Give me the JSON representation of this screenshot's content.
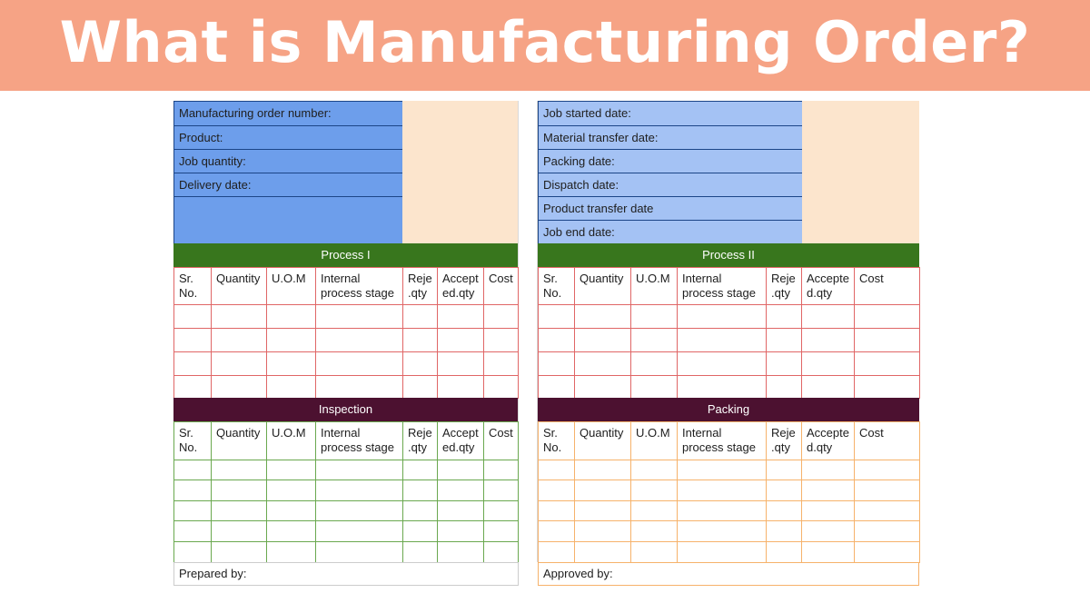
{
  "title": "What is Manufacturing Order?",
  "left_info_fields": [
    "Manufacturing order number:",
    "Product:",
    "Job quantity:",
    "Delivery date:",
    ""
  ],
  "right_info_fields": [
    "Job started date:",
    "Material transfer date:",
    "Packing date:",
    "Dispatch date:",
    "Product transfer date",
    "Job end date:"
  ],
  "sections": {
    "process_1": {
      "title": "Process I",
      "columns": [
        [
          "Sr.",
          "No."
        ],
        [
          "Quantity"
        ],
        [
          "U.O.M"
        ],
        [
          "Internal",
          "process stage"
        ],
        [
          "Reje",
          ".qty"
        ],
        [
          "Accept",
          "ed.qty"
        ],
        [
          "Cost"
        ]
      ]
    },
    "process_2": {
      "title": "Process II",
      "columns": [
        [
          "Sr.",
          "No."
        ],
        [
          "Quantity"
        ],
        [
          "U.O.M"
        ],
        [
          "Internal",
          "process stage"
        ],
        [
          "Reje",
          ".qty"
        ],
        [
          "Accepte",
          "d.qty"
        ],
        [
          "Cost"
        ]
      ]
    },
    "inspection": {
      "title": "Inspection",
      "columns": [
        [
          "Sr.",
          "No."
        ],
        [
          "Quantity"
        ],
        [
          "U.O.M"
        ],
        [
          "Internal",
          "process stage"
        ],
        [
          "Reje",
          ".qty"
        ],
        [
          "Accept",
          "ed.qty"
        ],
        [
          "Cost"
        ]
      ]
    },
    "packing": {
      "title": "Packing",
      "columns": [
        [
          "Sr.",
          "No."
        ],
        [
          "Quantity"
        ],
        [
          "U.O.M"
        ],
        [
          "Internal",
          "process stage"
        ],
        [
          "Reje",
          ".qty"
        ],
        [
          "Accepte",
          "d.qty"
        ],
        [
          "Cost"
        ]
      ]
    }
  },
  "footer": {
    "prepared_by_label": "Prepared by:",
    "approved_by_label": "Approved by:"
  },
  "colors": {
    "banner": "#f6a385",
    "left_info_fill": "#6d9eeb",
    "right_info_fill": "#a4c2f4",
    "value_fill": "#fce5cd",
    "process_header": "#38761d",
    "inspection_header": "#4c1130",
    "process_grid": "#e06666",
    "inspection_grid": "#6aa84f",
    "packing_grid": "#f6b26b",
    "info_grid": "#1c4587"
  }
}
